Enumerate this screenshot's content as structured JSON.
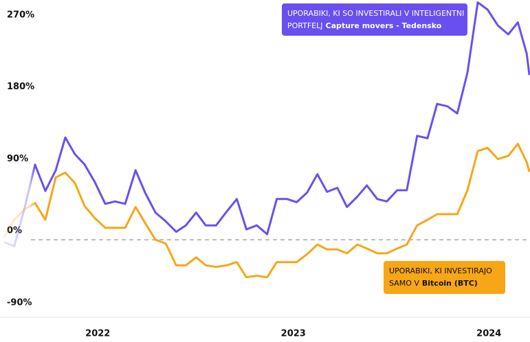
{
  "chart_data": {
    "type": "line",
    "x": [
      2021.521,
      2021.573,
      2021.626,
      2021.679,
      2021.732,
      2021.785,
      2021.834,
      2021.883,
      2021.933,
      2021.985,
      2022.038,
      2022.088,
      2022.14,
      2022.193,
      2022.242,
      2022.295,
      2022.348,
      2022.401,
      2022.45,
      2022.503,
      2022.552,
      2022.605,
      2022.658,
      2022.711,
      2022.76,
      2022.813,
      2022.866,
      2022.915,
      2022.968,
      2023.017,
      2023.07,
      2023.123,
      2023.172,
      2023.225,
      2023.274,
      2023.327,
      2023.376,
      2023.429,
      2023.478,
      2023.531,
      2023.58,
      2023.633,
      2023.686,
      2023.735,
      2023.788,
      2023.838,
      2023.89,
      2023.943,
      2023.993,
      2024.046,
      2024.099,
      2024.148,
      2024.193,
      2024.207
    ],
    "series": [
      {
        "name_lines": [
          "UPORABIKI, KI SO INVESTIRALI V INTELIGENTNI",
          "PORTFELJ"
        ],
        "name_bold": "Capture movers - Tedensko",
        "color": "#6a4ff0",
        "values": [
          -3,
          -8,
          40,
          94,
          61,
          87,
          128,
          107,
          94,
          72,
          45,
          48,
          45,
          87,
          59,
          34,
          23,
          10,
          18,
          34,
          18,
          18,
          35,
          51,
          13,
          18,
          7,
          51,
          51,
          47,
          59,
          82,
          60,
          65,
          41,
          54,
          68,
          51,
          48,
          62,
          62,
          130,
          127,
          170,
          167,
          158,
          209,
          297,
          288,
          268,
          257,
          272,
          233,
          206
        ]
      },
      {
        "name_lines": [
          "UPORABIKI, KI INVESTIRAJO",
          "SAMO V"
        ],
        "name_bold": "Bitcoin (BTC)",
        "color": "#f7a616",
        "values": [
          3,
          25,
          38,
          46,
          25,
          78,
          84,
          71,
          42,
          27,
          15,
          15,
          15,
          41,
          21,
          0,
          -5,
          -32,
          -32,
          -22,
          -32,
          -34,
          -32,
          -28,
          -47,
          -45,
          -47,
          -28,
          -28,
          -28,
          -18,
          -6,
          -12,
          -12,
          -17,
          -6,
          -11,
          -17,
          -17,
          -11,
          -6,
          18,
          25,
          32,
          32,
          32,
          62,
          111,
          115,
          101,
          105,
          120,
          97,
          85
        ]
      }
    ],
    "xlim": [
      2021.5,
      2024.21
    ],
    "xticks": [
      2022,
      2023,
      2024
    ],
    "ylim": [
      -97,
      300
    ],
    "yticks": [
      {
        "value": 270,
        "label": "270%"
      },
      {
        "value": 180,
        "label": "180%"
      },
      {
        "value": 90,
        "label": "90%"
      },
      {
        "value": 0,
        "label": "0%"
      },
      {
        "value": -90,
        "label": "-90%"
      }
    ],
    "zero_line": true
  }
}
